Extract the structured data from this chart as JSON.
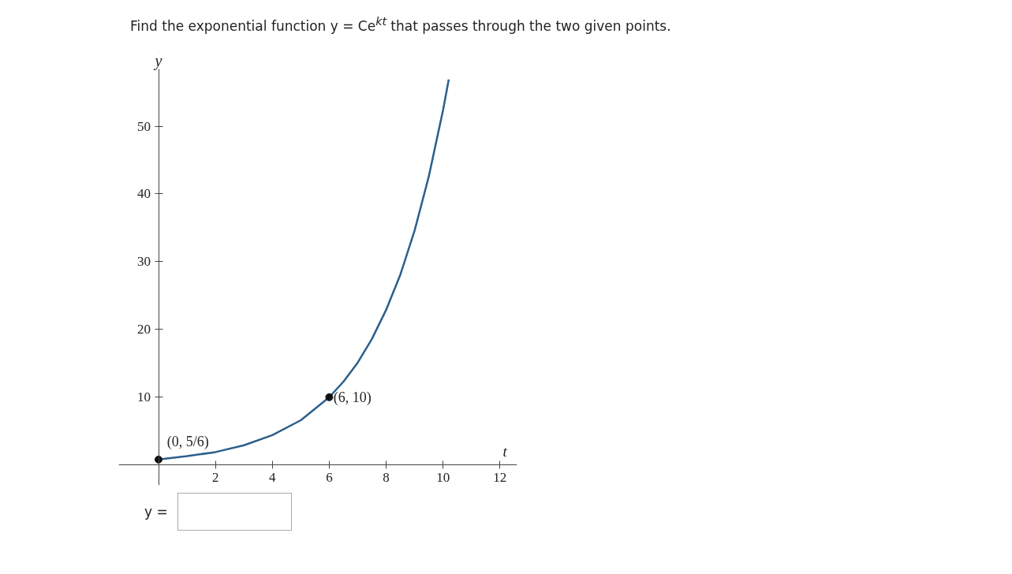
{
  "chart_data": {
    "type": "line",
    "title": "Find the exponential function y = Ce$^{kt}$ that passes through the two given points.",
    "xlabel": "t",
    "ylabel": "y",
    "xlim": [
      -1.4,
      12.6
    ],
    "ylim": [
      -3,
      61
    ],
    "xticks": [
      2,
      4,
      6,
      8,
      10,
      12
    ],
    "yticks": [
      10,
      20,
      30,
      40,
      50
    ],
    "grid": false,
    "marker": "none",
    "line_style": "solid",
    "series": [
      {
        "color": "#2b5f8c",
        "x": [
          0,
          1,
          2,
          3,
          4,
          5,
          6,
          6.5,
          7,
          7.5,
          8,
          8.5,
          9,
          9.5,
          10,
          10.2
        ],
        "values": [
          0.8,
          1.3,
          1.9,
          2.9,
          4.4,
          6.6,
          10,
          12.3,
          15.1,
          18.6,
          22.9,
          28.1,
          34.6,
          42.6,
          52.4,
          56.9
        ]
      },
      {
        "type": "scatter",
        "color": "#111111",
        "marker": "circle",
        "x": [
          0,
          6
        ],
        "values": [
          0.8,
          10
        ]
      }
    ],
    "annotations": [
      {
        "text": "(0, 5/6)",
        "x": 0,
        "y": 0.8
      },
      {
        "text": "(6, 10)",
        "x": 6,
        "y": 10
      },
      "y ="
    ]
  }
}
